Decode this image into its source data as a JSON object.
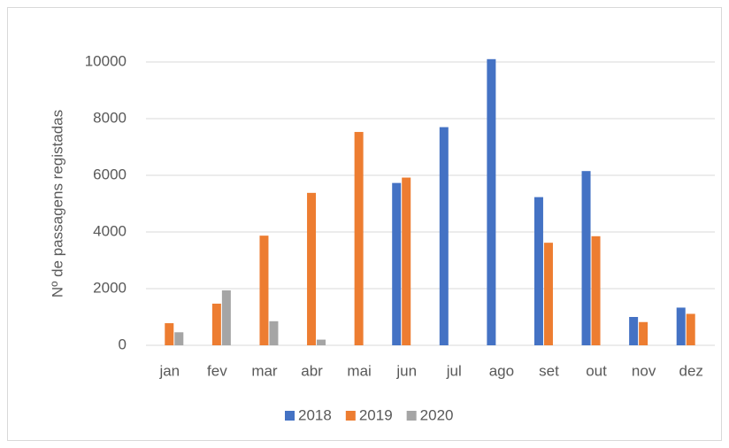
{
  "chart_data": {
    "type": "bar",
    "y_label": "Nº de passagens registadas",
    "categories": [
      "jan",
      "fev",
      "mar",
      "abr",
      "mai",
      "jun",
      "jul",
      "ago",
      "set",
      "out",
      "nov",
      "dez"
    ],
    "series": [
      {
        "name": "2018",
        "color": "#4472c4",
        "values": [
          null,
          null,
          null,
          null,
          null,
          5730,
          7700,
          10100,
          5230,
          6150,
          1000,
          1330
        ]
      },
      {
        "name": "2019",
        "color": "#ed7d31",
        "values": [
          780,
          1470,
          3870,
          5380,
          7530,
          5920,
          null,
          null,
          3620,
          3850,
          820,
          1110
        ]
      },
      {
        "name": "2020",
        "color": "#a5a5a5",
        "values": [
          460,
          1940,
          850,
          200,
          null,
          null,
          null,
          null,
          null,
          null,
          null,
          null
        ]
      }
    ],
    "ylim": [
      0,
      10000
    ],
    "yticks": [
      0,
      2000,
      4000,
      6000,
      8000,
      10000
    ],
    "grid": true,
    "legend": "bottom"
  }
}
